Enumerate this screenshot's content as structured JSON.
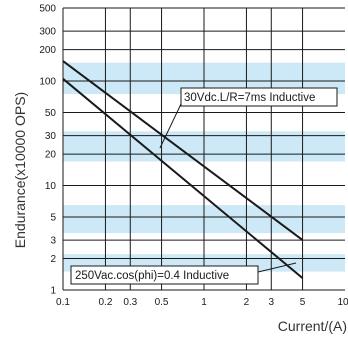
{
  "chart_data": {
    "type": "line",
    "x_scale": "log",
    "y_scale": "log",
    "xlim": [
      0.1,
      10
    ],
    "ylim": [
      1,
      500
    ],
    "grid": true,
    "xlabel": "Current/(A)",
    "ylabel": "Endurance(x10000 OPS)",
    "x_ticks": [
      {
        "value": 0.1,
        "label": "0.1"
      },
      {
        "value": 0.2,
        "label": "0.2"
      },
      {
        "value": 0.3,
        "label": "0.3"
      },
      {
        "value": 0.5,
        "label": "0.5"
      },
      {
        "value": 1,
        "label": "1"
      },
      {
        "value": 2,
        "label": "2"
      },
      {
        "value": 3,
        "label": "3"
      },
      {
        "value": 5,
        "label": "5"
      },
      {
        "value": 10,
        "label": "10"
      }
    ],
    "y_ticks": [
      {
        "value": 1,
        "label": "1"
      },
      {
        "value": 2,
        "label": "2"
      },
      {
        "value": 3,
        "label": "3"
      },
      {
        "value": 5,
        "label": "5"
      },
      {
        "value": 10,
        "label": "10"
      },
      {
        "value": 20,
        "label": "20"
      },
      {
        "value": 30,
        "label": "30"
      },
      {
        "value": 50,
        "label": "50"
      },
      {
        "value": 100,
        "label": "100"
      },
      {
        "value": 200,
        "label": "200"
      },
      {
        "value": 300,
        "label": "300"
      },
      {
        "value": 500,
        "label": "500"
      }
    ],
    "series": [
      {
        "name": "30Vdc.L/R=7ms Inductive",
        "color": "#1a1a1a",
        "x": [
          0.1,
          5
        ],
        "y": [
          155,
          3
        ]
      },
      {
        "name": "250Vac.cos(phi)=0.4 Inductive",
        "color": "#1a1a1a",
        "x": [
          0.1,
          5
        ],
        "y": [
          105,
          1.3
        ]
      }
    ],
    "background_band_color": "#cde9f7",
    "grid_color": "#1a1a1a"
  }
}
